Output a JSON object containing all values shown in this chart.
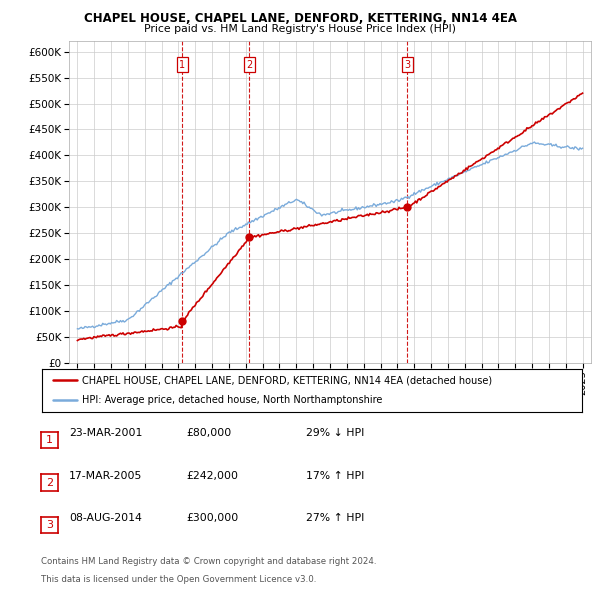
{
  "title1": "CHAPEL HOUSE, CHAPEL LANE, DENFORD, KETTERING, NN14 4EA",
  "title2": "Price paid vs. HM Land Registry's House Price Index (HPI)",
  "ylabel_ticks": [
    0,
    50000,
    100000,
    150000,
    200000,
    250000,
    300000,
    350000,
    400000,
    450000,
    500000,
    550000,
    600000
  ],
  "ylabel_labels": [
    "£0",
    "£50K",
    "£100K",
    "£150K",
    "£200K",
    "£250K",
    "£300K",
    "£350K",
    "£400K",
    "£450K",
    "£500K",
    "£550K",
    "£600K"
  ],
  "xlim_min": 1994.5,
  "xlim_max": 2025.5,
  "ylim_min": 0,
  "ylim_max": 620000,
  "sale_dates": [
    2001.22,
    2005.21,
    2014.6
  ],
  "sale_prices": [
    80000,
    242000,
    300000
  ],
  "sale_labels": [
    "1",
    "2",
    "3"
  ],
  "sale_info": [
    {
      "label": "1",
      "date": "23-MAR-2001",
      "price": "£80,000",
      "hpi": "29% ↓ HPI"
    },
    {
      "label": "2",
      "date": "17-MAR-2005",
      "price": "£242,000",
      "hpi": "17% ↑ HPI"
    },
    {
      "label": "3",
      "date": "08-AUG-2014",
      "price": "£300,000",
      "hpi": "27% ↑ HPI"
    }
  ],
  "legend_line1": "CHAPEL HOUSE, CHAPEL LANE, DENFORD, KETTERING, NN14 4EA (detached house)",
  "legend_line2": "HPI: Average price, detached house, North Northamptonshire",
  "footnote1": "Contains HM Land Registry data © Crown copyright and database right 2024.",
  "footnote2": "This data is licensed under the Open Government Licence v3.0.",
  "line_color_red": "#cc0000",
  "line_color_blue": "#7aabdb",
  "vline_color": "#cc0000",
  "background_color": "#ffffff",
  "grid_color": "#cccccc"
}
